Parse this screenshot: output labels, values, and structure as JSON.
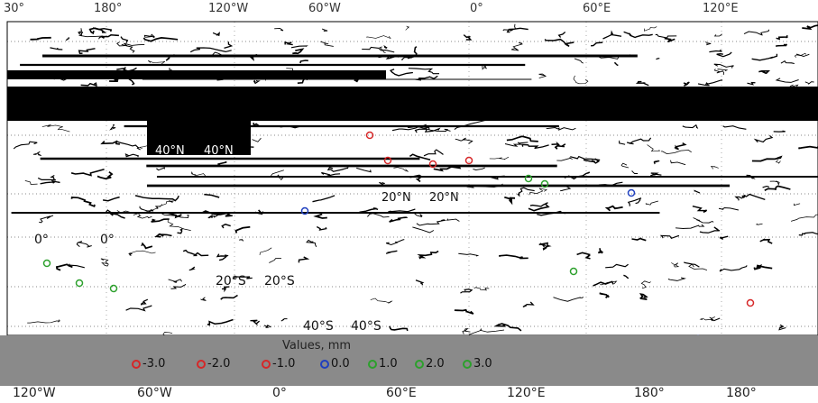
{
  "map": {
    "top_axis_labels": [
      "30°",
      "180°",
      "120°W",
      "60°W",
      "0°",
      "60°E",
      "120°E"
    ],
    "bottom_axis_labels": [
      "120°W",
      "60°W",
      "0°",
      "60°E",
      "120°E",
      "180°",
      "180°"
    ],
    "lat_labels": {
      "n40_left": "40°N",
      "n40_right": "40°N",
      "n20_left": "20°N",
      "n20_right": "20°N",
      "eq_left": "0°",
      "eq_right": "0°",
      "s20_left": "20°S",
      "s20_right": "20°S",
      "s40_left": "40°S",
      "s40_right": "40°S"
    },
    "colors": {
      "background": "#ffffff",
      "coast": "#000000",
      "legend_bg": "#8a8a8a",
      "negative": "#d62728",
      "positive": "#2ca02c",
      "neutral": "#1f3fbf"
    }
  },
  "legend": {
    "title": "Values, mm",
    "items": [
      {
        "label": "-3.0",
        "color": "#d62728"
      },
      {
        "label": "-2.0",
        "color": "#d62728"
      },
      {
        "label": "-1.0",
        "color": "#d62728"
      },
      {
        "label": "0.0",
        "color": "#1f3fbf"
      },
      {
        "label": "1.0",
        "color": "#2ca02c"
      },
      {
        "label": "2.0",
        "color": "#2ca02c"
      },
      {
        "label": "3.0",
        "color": "#2ca02c"
      }
    ]
  }
}
